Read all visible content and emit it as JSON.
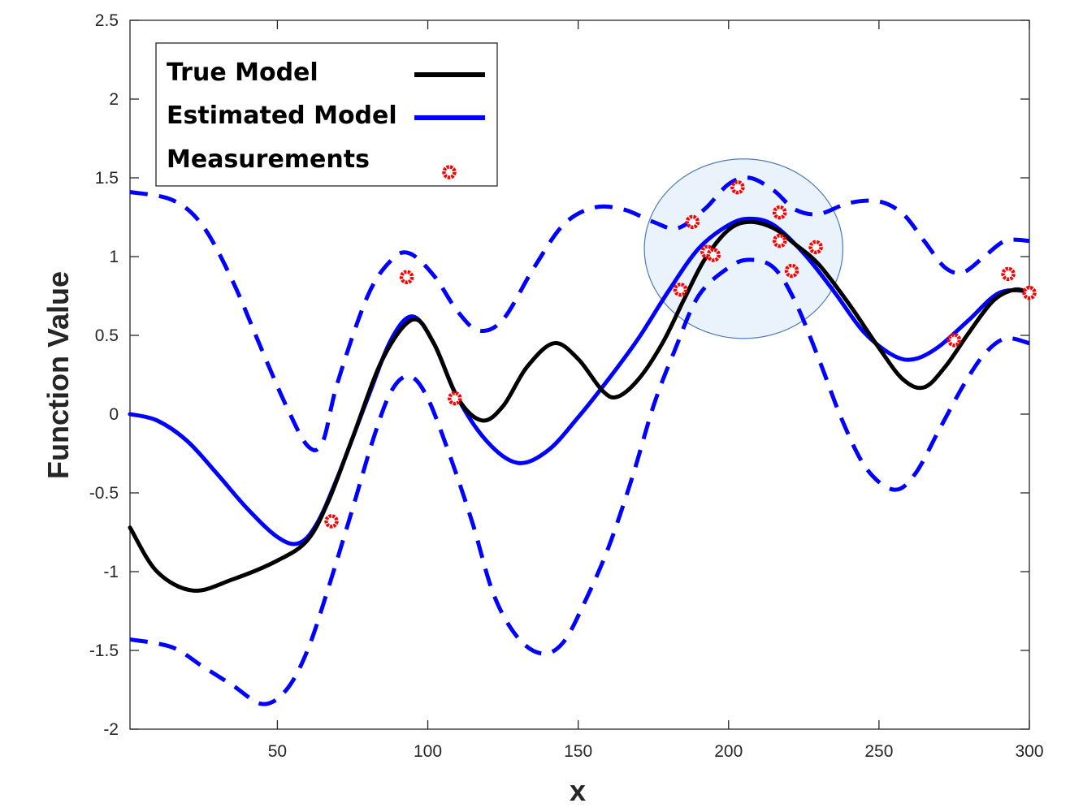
{
  "chart_data": {
    "type": "line",
    "title": "",
    "xlabel": "x",
    "ylabel": "Function Value",
    "xlim": [
      1,
      300
    ],
    "ylim": [
      -2,
      2.5
    ],
    "xticks": [
      50,
      100,
      150,
      200,
      250,
      300
    ],
    "yticks": [
      -2,
      -1.5,
      -1,
      -0.5,
      0,
      0.5,
      1,
      1.5,
      2,
      2.5
    ],
    "xtick_labels": [
      "50",
      "100",
      "150",
      "200",
      "250",
      "300"
    ],
    "ytick_labels": [
      "-2",
      "-1.5",
      "-1",
      "-0.5",
      "0",
      "0.5",
      "1",
      "1.5",
      "2",
      "2.5"
    ],
    "grid": false,
    "legend_position": "top-left",
    "colors": {
      "true_model": "#000000",
      "estimated_model": "#0000ff",
      "measurements": "#ff0000",
      "highlight_fill": "#dce9f8",
      "highlight_stroke": "#4a7ab8"
    },
    "series": [
      {
        "name": "True Model",
        "style": "solid",
        "color": "#000000",
        "points": [
          [
            1,
            -0.72
          ],
          [
            10,
            -1.0
          ],
          [
            22,
            -1.12
          ],
          [
            35,
            -1.05
          ],
          [
            50,
            -0.93
          ],
          [
            60,
            -0.8
          ],
          [
            67,
            -0.55
          ],
          [
            75,
            -0.15
          ],
          [
            85,
            0.35
          ],
          [
            95,
            0.6
          ],
          [
            102,
            0.45
          ],
          [
            110,
            0.1
          ],
          [
            118,
            -0.04
          ],
          [
            125,
            0.05
          ],
          [
            133,
            0.3
          ],
          [
            142,
            0.45
          ],
          [
            150,
            0.35
          ],
          [
            158,
            0.15
          ],
          [
            163,
            0.11
          ],
          [
            170,
            0.22
          ],
          [
            178,
            0.45
          ],
          [
            185,
            0.72
          ],
          [
            192,
            0.98
          ],
          [
            200,
            1.17
          ],
          [
            207,
            1.22
          ],
          [
            215,
            1.18
          ],
          [
            222,
            1.08
          ],
          [
            230,
            0.95
          ],
          [
            240,
            0.7
          ],
          [
            250,
            0.42
          ],
          [
            258,
            0.22
          ],
          [
            265,
            0.17
          ],
          [
            272,
            0.3
          ],
          [
            280,
            0.52
          ],
          [
            288,
            0.72
          ],
          [
            295,
            0.79
          ],
          [
            300,
            0.77
          ]
        ]
      },
      {
        "name": "Estimated Model",
        "style": "solid",
        "color": "#0000ff",
        "points": [
          [
            1,
            0.0
          ],
          [
            10,
            -0.04
          ],
          [
            20,
            -0.17
          ],
          [
            30,
            -0.38
          ],
          [
            40,
            -0.6
          ],
          [
            50,
            -0.78
          ],
          [
            57,
            -0.82
          ],
          [
            63,
            -0.7
          ],
          [
            70,
            -0.4
          ],
          [
            80,
            0.1
          ],
          [
            88,
            0.48
          ],
          [
            95,
            0.62
          ],
          [
            102,
            0.45
          ],
          [
            110,
            0.1
          ],
          [
            120,
            -0.18
          ],
          [
            130,
            -0.31
          ],
          [
            140,
            -0.23
          ],
          [
            150,
            -0.02
          ],
          [
            160,
            0.22
          ],
          [
            170,
            0.48
          ],
          [
            180,
            0.78
          ],
          [
            190,
            1.05
          ],
          [
            200,
            1.2
          ],
          [
            207,
            1.24
          ],
          [
            215,
            1.2
          ],
          [
            225,
            1.02
          ],
          [
            235,
            0.78
          ],
          [
            245,
            0.52
          ],
          [
            255,
            0.37
          ],
          [
            262,
            0.35
          ],
          [
            270,
            0.43
          ],
          [
            280,
            0.6
          ],
          [
            290,
            0.77
          ],
          [
            300,
            0.78
          ]
        ]
      },
      {
        "name": "Upper Bound",
        "style": "dashed",
        "color": "#0000ff",
        "points": [
          [
            1,
            1.41
          ],
          [
            15,
            1.36
          ],
          [
            25,
            1.2
          ],
          [
            35,
            0.85
          ],
          [
            45,
            0.4
          ],
          [
            53,
            0.05
          ],
          [
            60,
            -0.2
          ],
          [
            65,
            -0.18
          ],
          [
            70,
            0.2
          ],
          [
            80,
            0.75
          ],
          [
            88,
            0.98
          ],
          [
            94,
            1.02
          ],
          [
            102,
            0.88
          ],
          [
            110,
            0.65
          ],
          [
            117,
            0.53
          ],
          [
            125,
            0.6
          ],
          [
            135,
            0.92
          ],
          [
            145,
            1.2
          ],
          [
            155,
            1.31
          ],
          [
            165,
            1.3
          ],
          [
            175,
            1.22
          ],
          [
            183,
            1.18
          ],
          [
            192,
            1.3
          ],
          [
            200,
            1.46
          ],
          [
            207,
            1.5
          ],
          [
            215,
            1.42
          ],
          [
            222,
            1.3
          ],
          [
            230,
            1.27
          ],
          [
            240,
            1.34
          ],
          [
            250,
            1.35
          ],
          [
            258,
            1.27
          ],
          [
            265,
            1.1
          ],
          [
            272,
            0.93
          ],
          [
            278,
            0.9
          ],
          [
            285,
            1.0
          ],
          [
            292,
            1.1
          ],
          [
            300,
            1.1
          ]
        ]
      },
      {
        "name": "Lower Bound",
        "style": "dashed",
        "color": "#0000ff",
        "points": [
          [
            1,
            -1.43
          ],
          [
            15,
            -1.48
          ],
          [
            25,
            -1.6
          ],
          [
            35,
            -1.72
          ],
          [
            45,
            -1.84
          ],
          [
            53,
            -1.75
          ],
          [
            60,
            -1.5
          ],
          [
            67,
            -1.1
          ],
          [
            75,
            -0.6
          ],
          [
            82,
            -0.15
          ],
          [
            88,
            0.15
          ],
          [
            94,
            0.24
          ],
          [
            100,
            0.1
          ],
          [
            108,
            -0.3
          ],
          [
            115,
            -0.7
          ],
          [
            122,
            -1.15
          ],
          [
            130,
            -1.42
          ],
          [
            138,
            -1.52
          ],
          [
            145,
            -1.45
          ],
          [
            152,
            -1.2
          ],
          [
            160,
            -0.85
          ],
          [
            168,
            -0.4
          ],
          [
            175,
            0.05
          ],
          [
            182,
            0.4
          ],
          [
            190,
            0.75
          ],
          [
            200,
            0.93
          ],
          [
            207,
            0.98
          ],
          [
            215,
            0.93
          ],
          [
            222,
            0.72
          ],
          [
            230,
            0.35
          ],
          [
            238,
            -0.05
          ],
          [
            246,
            -0.35
          ],
          [
            255,
            -0.48
          ],
          [
            262,
            -0.38
          ],
          [
            270,
            -0.1
          ],
          [
            278,
            0.18
          ],
          [
            285,
            0.38
          ],
          [
            292,
            0.48
          ],
          [
            300,
            0.45
          ]
        ]
      }
    ],
    "measurements": {
      "name": "Measurements",
      "points": [
        [
          68,
          -0.68
        ],
        [
          93,
          0.87
        ],
        [
          109,
          0.1
        ],
        [
          184,
          0.79
        ],
        [
          188,
          1.22
        ],
        [
          193,
          1.03
        ],
        [
          195,
          1.01
        ],
        [
          203,
          1.44
        ],
        [
          217,
          1.28
        ],
        [
          217,
          1.1
        ],
        [
          221,
          0.91
        ],
        [
          229,
          1.06
        ],
        [
          275,
          0.47
        ],
        [
          293,
          0.89
        ],
        [
          300,
          0.77
        ]
      ]
    },
    "highlight_region": {
      "center_x": 205,
      "center_y": 1.05,
      "radius_x": 33,
      "radius_y": 0.57
    },
    "legend": [
      {
        "label": "True Model",
        "kind": "line",
        "color": "#000000"
      },
      {
        "label": "Estimated Model",
        "kind": "line",
        "color": "#0000ff"
      },
      {
        "label": "Measurements",
        "kind": "marker",
        "color": "#ff0000"
      }
    ]
  }
}
